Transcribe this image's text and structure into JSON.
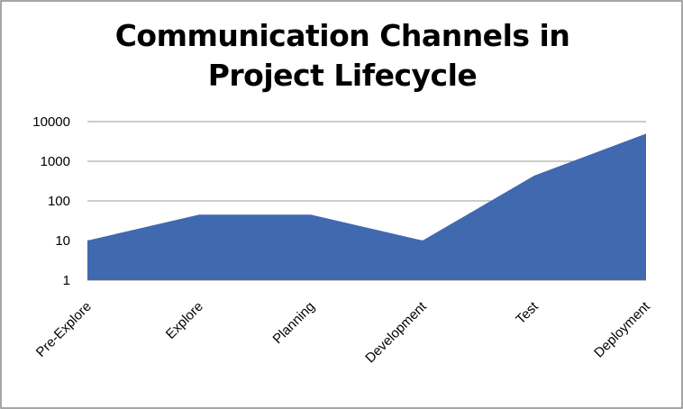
{
  "chart_data": {
    "type": "area",
    "title": "Communication Channels in Project Lifecycle",
    "categories": [
      "Pre-Explore",
      "Explore",
      "Planning",
      "Development",
      "Test",
      "Deployment"
    ],
    "values": [
      10,
      45,
      45,
      10,
      435,
      4950
    ],
    "color": "#4169b0",
    "log_y": true,
    "ylim": [
      1,
      10000
    ],
    "yticks": [
      1,
      10,
      100,
      1000,
      10000
    ],
    "grid": true
  }
}
